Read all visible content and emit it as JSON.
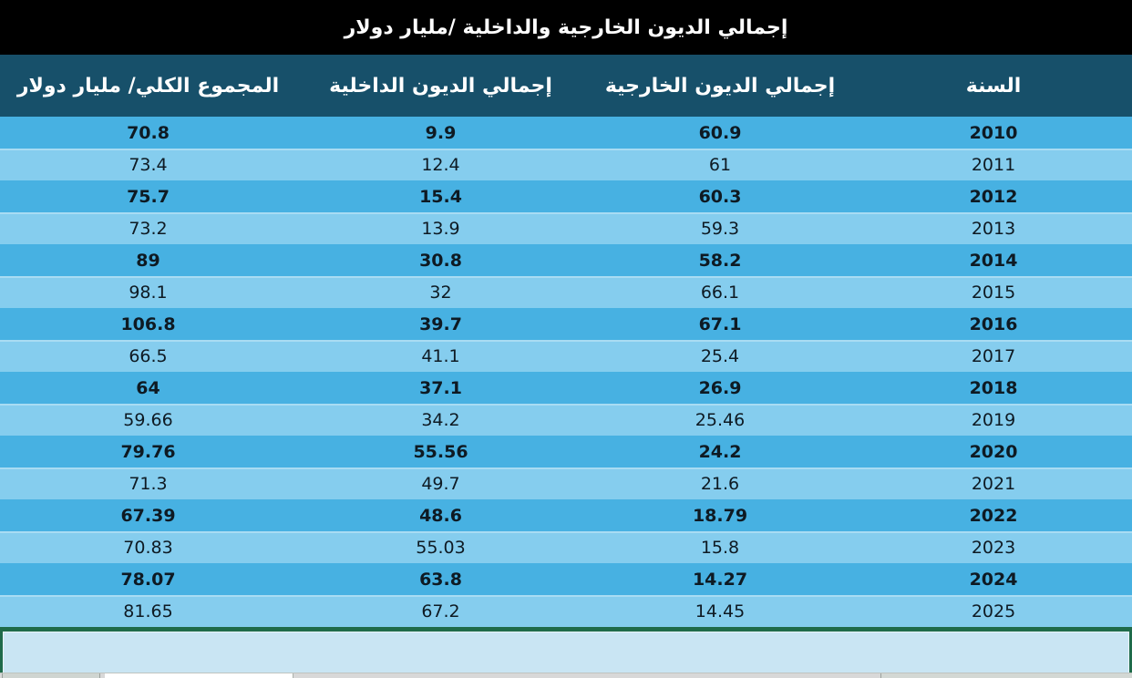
{
  "title": "إجمالي الديون الخارجية والداخلية  /مليار دولار",
  "colors": {
    "title_bg": "#000000",
    "header_bg": "#17506a",
    "row_dark": "#47b1e2",
    "row_light": "#85cdee",
    "text_dark": "#0e1a23",
    "divider_green": "#1f6b4a",
    "panel_bg": "#c9e5f3"
  },
  "table": {
    "columns": {
      "year": "السنة",
      "external": "إجمالي الديون الخارجية",
      "internal": "إجمالي الديون الداخلية",
      "total": "المجموع الكلي/ مليار دولار"
    },
    "rows": [
      {
        "year": "2010",
        "external": "60.9",
        "internal": "9.9",
        "total": "70.8"
      },
      {
        "year": "2011",
        "external": "61",
        "internal": "12.4",
        "total": "73.4"
      },
      {
        "year": "2012",
        "external": "60.3",
        "internal": "15.4",
        "total": "75.7"
      },
      {
        "year": "2013",
        "external": "59.3",
        "internal": "13.9",
        "total": "73.2"
      },
      {
        "year": "2014",
        "external": "58.2",
        "internal": "30.8",
        "total": "89"
      },
      {
        "year": "2015",
        "external": "66.1",
        "internal": "32",
        "total": "98.1"
      },
      {
        "year": "2016",
        "external": "67.1",
        "internal": "39.7",
        "total": "106.8"
      },
      {
        "year": "2017",
        "external": "25.4",
        "internal": "41.1",
        "total": "66.5"
      },
      {
        "year": "2018",
        "external": "26.9",
        "internal": "37.1",
        "total": "64"
      },
      {
        "year": "2019",
        "external": "25.46",
        "internal": "34.2",
        "total": "59.66"
      },
      {
        "year": "2020",
        "external": "24.2",
        "internal": "55.56",
        "total": "79.76"
      },
      {
        "year": "2021",
        "external": "21.6",
        "internal": "49.7",
        "total": "71.3"
      },
      {
        "year": "2022",
        "external": "18.79",
        "internal": "48.6",
        "total": "67.39"
      },
      {
        "year": "2023",
        "external": "15.8",
        "internal": "55.03",
        "total": "70.83"
      },
      {
        "year": "2024",
        "external": "14.27",
        "internal": "63.8",
        "total": "78.07"
      },
      {
        "year": "2025",
        "external": "14.45",
        "internal": "67.2",
        "total": "81.65"
      }
    ]
  },
  "chart_data": {
    "type": "table",
    "title": "إجمالي الديون الخارجية والداخلية  /مليار دولار",
    "unit": "مليار دولار",
    "categories": [
      2010,
      2011,
      2012,
      2013,
      2014,
      2015,
      2016,
      2017,
      2018,
      2019,
      2020,
      2021,
      2022,
      2023,
      2024,
      2025
    ],
    "series": [
      {
        "name": "إجمالي الديون الخارجية",
        "values": [
          60.9,
          61,
          60.3,
          59.3,
          58.2,
          66.1,
          67.1,
          25.4,
          26.9,
          25.46,
          24.2,
          21.6,
          18.79,
          15.8,
          14.27,
          14.45
        ]
      },
      {
        "name": "إجمالي الديون الداخلية",
        "values": [
          9.9,
          12.4,
          15.4,
          13.9,
          30.8,
          32,
          39.7,
          41.1,
          37.1,
          34.2,
          55.56,
          49.7,
          48.6,
          55.03,
          63.8,
          67.2
        ]
      },
      {
        "name": "المجموع الكلي/ مليار دولار",
        "values": [
          70.8,
          73.4,
          75.7,
          73.2,
          89,
          98.1,
          106.8,
          66.5,
          64,
          59.66,
          79.76,
          71.3,
          67.39,
          70.83,
          78.07,
          81.65
        ]
      }
    ],
    "layout": {
      "direction": "rtl",
      "row_striping": [
        "dark",
        "light"
      ],
      "bold_rows": "dark"
    }
  }
}
